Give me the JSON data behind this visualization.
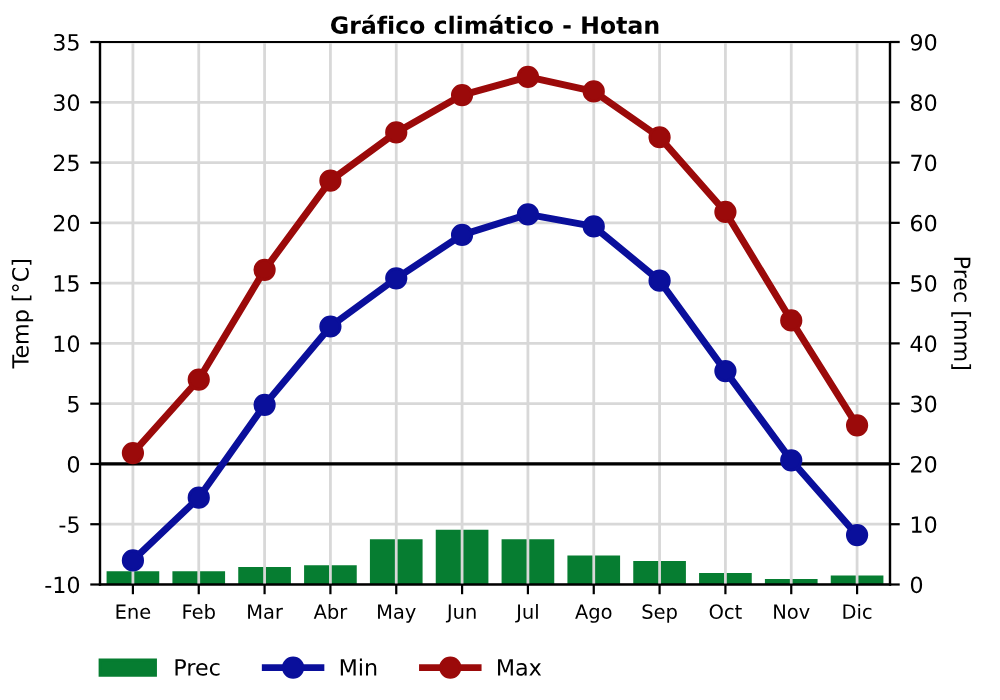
{
  "chart_data": {
    "type": "line",
    "title": "Gráfico climático - Hotan",
    "ylabel": "Temp [°C]",
    "y2label": "Prec [mm]",
    "categories": [
      "Ene",
      "Feb",
      "Mar",
      "Abr",
      "May",
      "Jun",
      "Jul",
      "Ago",
      "Sep",
      "Oct",
      "Nov",
      "Dic"
    ],
    "series": [
      {
        "name": "Prec",
        "type": "bar",
        "axis": "y2",
        "color": "#067d31",
        "values": [
          2.2,
          2.2,
          2.9,
          3.2,
          7.5,
          9.1,
          7.5,
          4.8,
          3.9,
          1.9,
          0.9,
          1.5
        ]
      },
      {
        "name": "Min",
        "color": "#0a0f9b",
        "values": [
          -8,
          -2.8,
          4.9,
          11.4,
          15.4,
          19,
          20.7,
          19.7,
          15.2,
          7.7,
          0.3,
          -5.9
        ]
      },
      {
        "name": "Max",
        "color": "#9b0a0a",
        "values": [
          0.9,
          7,
          16.1,
          23.5,
          27.5,
          30.6,
          32.1,
          30.9,
          27.1,
          20.9,
          11.9,
          3.2
        ]
      }
    ],
    "ylim": [
      -10,
      35
    ],
    "yticks": [
      -10,
      -5,
      0,
      5,
      10,
      15,
      20,
      25,
      30,
      35
    ],
    "y2lim": [
      0,
      90
    ],
    "y2ticks": [
      0,
      10,
      20,
      30,
      40,
      50,
      60,
      70,
      80,
      90
    ],
    "ref_lines": [
      {
        "axis": "y",
        "value": 0,
        "color": "#000000"
      }
    ],
    "grid": true,
    "legend": "bottom left",
    "marker": "circle",
    "line_style": "solid"
  }
}
